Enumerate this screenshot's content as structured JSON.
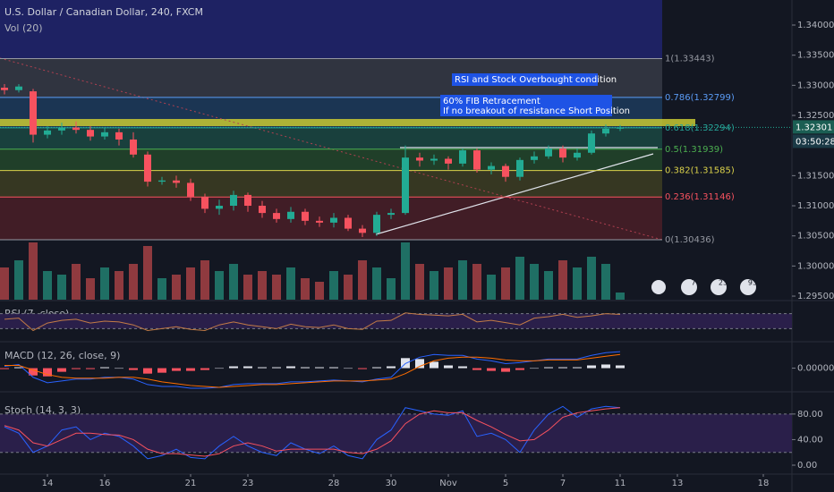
{
  "chart_data": {
    "type": "candlestick",
    "title": "U.S. Dollar / Canadian Dollar, 240, FXCM",
    "volume_label": "Vol (20)",
    "rsi_label": "RSI (7, close)",
    "macd_label": "MACD (12, 26, close, 9)",
    "stoch_label": "Stoch (14, 3, 3)",
    "annotations": [
      "RSI and Stock Overbought condition",
      "60% FIB Retracement",
      "If no breakout of resistance Short Position"
    ],
    "countdown": "03:50:28",
    "current_price": {
      "value": 1.32301,
      "label": "1.32301"
    },
    "events": [
      "7",
      "23",
      "93"
    ],
    "up_color": "#22ab94",
    "down_color": "#f7525f",
    "volume_up_color": "#1f6f64",
    "volume_down_color": "#8f3a3f",
    "xlim": [
      -0.3125,
      55
    ],
    "xticks": [
      {
        "value": 3,
        "label": "14"
      },
      {
        "value": 7,
        "label": "16"
      },
      {
        "value": 13,
        "label": "21"
      },
      {
        "value": 17,
        "label": "23"
      },
      {
        "value": 23,
        "label": "28"
      },
      {
        "value": 27,
        "label": "30"
      },
      {
        "value": 31,
        "label": "Nov"
      },
      {
        "value": 35,
        "label": "5"
      },
      {
        "value": 39,
        "label": "7"
      },
      {
        "value": 43,
        "label": "11"
      },
      {
        "value": 47,
        "label": "13"
      },
      {
        "value": 53,
        "label": "18"
      }
    ],
    "ylim": [
      1.29441,
      1.34416
    ],
    "yticks": [
      {
        "value": 1.34,
        "label": "1.34000"
      },
      {
        "value": 1.335,
        "label": "1.33500"
      },
      {
        "value": 1.33,
        "label": "1.33000"
      },
      {
        "value": 1.325,
        "label": "1.32500"
      },
      {
        "value": 1.315,
        "label": "1.31500"
      },
      {
        "value": 1.31,
        "label": "1.31000"
      },
      {
        "value": 1.305,
        "label": "1.30500"
      },
      {
        "value": 1.3,
        "label": "1.30000"
      },
      {
        "value": 1.295,
        "label": "1.29500"
      }
    ],
    "open": [
      1.3296,
      1.3292,
      1.329,
      1.3218,
      1.3225,
      1.323,
      1.3226,
      1.3215,
      1.3222,
      1.321,
      1.3185,
      1.314,
      1.3142,
      1.3138,
      1.3115,
      1.3095,
      1.31,
      1.3118,
      1.31,
      1.3088,
      1.3078,
      1.309,
      1.3075,
      1.3072,
      1.308,
      1.3062,
      1.3055,
      1.3085,
      1.3088,
      1.318,
      1.3175,
      1.3178,
      1.317,
      1.3192,
      1.316,
      1.3166,
      1.3148,
      1.3176,
      1.3182,
      1.3195,
      1.318,
      1.3188,
      1.322,
      1.3228
    ],
    "high": [
      1.3302,
      1.3302,
      1.3294,
      1.3232,
      1.3238,
      1.324,
      1.3232,
      1.323,
      1.3228,
      1.3222,
      1.319,
      1.3148,
      1.315,
      1.3145,
      1.312,
      1.311,
      1.3125,
      1.3122,
      1.3108,
      1.3095,
      1.3098,
      1.3095,
      1.3082,
      1.3088,
      1.3085,
      1.3068,
      1.309,
      1.3095,
      1.32,
      1.3188,
      1.3185,
      1.3182,
      1.3195,
      1.3195,
      1.3172,
      1.317,
      1.318,
      1.319,
      1.32,
      1.32,
      1.3195,
      1.3225,
      1.3235,
      1.3234
    ],
    "low": [
      1.3285,
      1.3288,
      1.3205,
      1.3212,
      1.3218,
      1.322,
      1.3208,
      1.321,
      1.32,
      1.318,
      1.3132,
      1.3135,
      1.313,
      1.3108,
      1.3088,
      1.3085,
      1.3092,
      1.309,
      1.308,
      1.3072,
      1.3072,
      1.3068,
      1.3065,
      1.3064,
      1.3058,
      1.3048,
      1.305,
      1.3078,
      1.3085,
      1.3165,
      1.3168,
      1.316,
      1.3165,
      1.3155,
      1.3152,
      1.314,
      1.3142,
      1.317,
      1.3178,
      1.3172,
      1.3175,
      1.3185,
      1.3215,
      1.3224
    ],
    "close": [
      1.3292,
      1.3298,
      1.3218,
      1.3225,
      1.323,
      1.3226,
      1.3215,
      1.3222,
      1.321,
      1.3185,
      1.314,
      1.3142,
      1.3138,
      1.3115,
      1.3095,
      1.31,
      1.3118,
      1.31,
      1.3088,
      1.3078,
      1.309,
      1.3075,
      1.3072,
      1.308,
      1.3062,
      1.3055,
      1.3085,
      1.3088,
      1.318,
      1.3175,
      1.3178,
      1.317,
      1.3192,
      1.316,
      1.3166,
      1.3148,
      1.3176,
      1.3182,
      1.3195,
      1.318,
      1.3188,
      1.322,
      1.3228,
      1.323
    ],
    "volume": [
      45,
      55,
      80,
      40,
      35,
      50,
      30,
      45,
      40,
      50,
      75,
      30,
      35,
      45,
      55,
      40,
      50,
      35,
      40,
      35,
      45,
      30,
      25,
      40,
      35,
      55,
      45,
      30,
      80,
      50,
      40,
      45,
      55,
      50,
      35,
      45,
      60,
      50,
      40,
      55,
      45,
      60,
      50,
      10
    ],
    "fib_levels": [
      {
        "value": 1.33443,
        "label": "1(1.33443)"
      },
      {
        "value": 1.32799,
        "label": "0.786(1.32799)"
      },
      {
        "value": 1.32294,
        "label": "0.618(1.32294)"
      },
      {
        "value": 1.31939,
        "label": "0.5(1.31939)"
      },
      {
        "value": 1.31585,
        "label": "0.382(1.31585)"
      },
      {
        "value": 1.31146,
        "label": "0.236(1.31146)"
      },
      {
        "value": 1.30436,
        "label": "0(1.30436)"
      }
    ],
    "fib_text_colors": [
      "#9598a1",
      "#5b9cf6",
      "#26a69a",
      "#4caf50",
      "#dbd24a",
      "#f7525f",
      "#9598a1"
    ],
    "fib_band_colors": [
      "#363a45",
      "#1d3b5c",
      "#1b4842",
      "#23472a",
      "#3d3d22",
      "#4a1f27"
    ],
    "rsi_lim": [
      0,
      100
    ],
    "rsi_bands": [
      70,
      30
    ],
    "rsi_color": "#c27b46",
    "rsi": [
      55,
      58,
      25,
      45,
      52,
      55,
      45,
      50,
      48,
      40,
      25,
      30,
      35,
      28,
      25,
      40,
      48,
      40,
      35,
      30,
      42,
      35,
      33,
      40,
      30,
      28,
      50,
      52,
      72,
      68,
      66,
      64,
      68,
      48,
      52,
      46,
      40,
      58,
      62,
      68,
      60,
      64,
      70,
      68
    ],
    "macd_lim": [
      -0.0022,
      0.0027
    ],
    "macd_ticks": [
      {
        "value": 0,
        "label": "0.00000"
      }
    ],
    "macd_color": "#2962ff",
    "signal_color": "#ff6d00",
    "macd": [
      0.0002,
      0.0004,
      -0.001,
      -0.0016,
      -0.0014,
      -0.0012,
      -0.0012,
      -0.001,
      -0.001,
      -0.0012,
      -0.0018,
      -0.002,
      -0.002,
      -0.0022,
      -0.0022,
      -0.0021,
      -0.0018,
      -0.0017,
      -0.0017,
      -0.0017,
      -0.0015,
      -0.0015,
      -0.0014,
      -0.0013,
      -0.0014,
      -0.0015,
      -0.0012,
      -0.001,
      0.0005,
      0.0012,
      0.0015,
      0.0014,
      0.0014,
      0.001,
      0.0008,
      0.0005,
      0.0006,
      0.0008,
      0.001,
      0.001,
      0.001,
      0.0014,
      0.0017,
      0.0018
    ],
    "signal": [
      0.0003,
      0.0003,
      -0.0002,
      -0.0007,
      -0.001,
      -0.0011,
      -0.0011,
      -0.0011,
      -0.001,
      -0.001,
      -0.0012,
      -0.0015,
      -0.0017,
      -0.0019,
      -0.002,
      -0.0021,
      -0.002,
      -0.0019,
      -0.0018,
      -0.0018,
      -0.0017,
      -0.0016,
      -0.0015,
      -0.0014,
      -0.0014,
      -0.0014,
      -0.0013,
      -0.0012,
      -0.0006,
      0.0002,
      0.0008,
      0.0011,
      0.0012,
      0.0012,
      0.0011,
      0.0009,
      0.0008,
      0.0008,
      0.0009,
      0.0009,
      0.0009,
      0.0011,
      0.0013,
      0.0015
    ],
    "histogram": [
      -0.0001,
      0.0001,
      -0.0008,
      -0.0009,
      -0.0004,
      -0.0001,
      -0.0001,
      0.0001,
      0,
      -0.0002,
      -0.0006,
      -0.0005,
      -0.0003,
      -0.0003,
      -0.0002,
      0,
      0.0002,
      0.0002,
      0.0001,
      0.0001,
      0.0002,
      0.0001,
      0.0001,
      0.0001,
      0,
      -0.0001,
      0.0001,
      0.0002,
      0.0011,
      0.001,
      0.0007,
      0.0003,
      0.0002,
      -0.0002,
      -0.0003,
      -0.0004,
      -0.0002,
      0,
      0.0001,
      0.0001,
      0.0001,
      0.0003,
      0.0004,
      0.0003
    ],
    "histogram_up_color": "#e0e3eb",
    "histogram_down_color": "#f7525f",
    "stoch_lim": [
      -14,
      105
    ],
    "stoch_ticks": [
      {
        "value": 80,
        "label": "80.00"
      },
      {
        "value": 40,
        "label": "40.00"
      },
      {
        "value": 0,
        "label": "0.00"
      }
    ],
    "stoch_bands": [
      80,
      20
    ],
    "k_color": "#2962ff",
    "d_color": "#f7525f",
    "stoch_k": [
      60,
      50,
      20,
      30,
      55,
      60,
      40,
      50,
      45,
      30,
      10,
      15,
      25,
      12,
      10,
      30,
      45,
      30,
      20,
      15,
      35,
      25,
      18,
      30,
      15,
      10,
      40,
      55,
      90,
      85,
      80,
      78,
      85,
      45,
      50,
      40,
      20,
      55,
      80,
      92,
      75,
      88,
      92,
      90
    ],
    "stoch_d": [
      62,
      55,
      35,
      30,
      40,
      50,
      50,
      48,
      47,
      40,
      25,
      18,
      18,
      16,
      14,
      18,
      30,
      35,
      30,
      22,
      25,
      25,
      25,
      25,
      20,
      18,
      25,
      38,
      65,
      80,
      85,
      82,
      82,
      70,
      60,
      48,
      38,
      40,
      55,
      75,
      82,
      85,
      88,
      90
    ]
  }
}
